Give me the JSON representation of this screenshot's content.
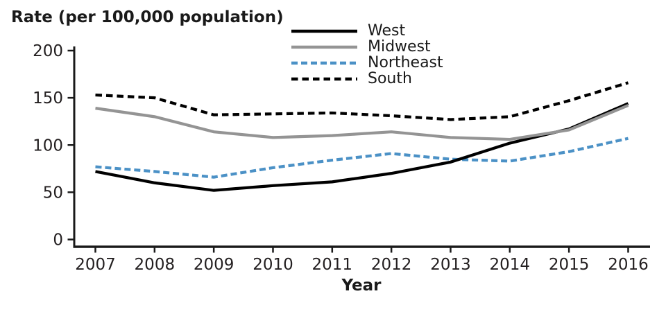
{
  "figure": {
    "background_color": "#ffffff",
    "axis_color": "#1a1a1a",
    "tick_label_color": "#231f20"
  },
  "chart_data": {
    "type": "line",
    "title": "",
    "y_axis_title": "Rate (per 100,000 population)",
    "x_axis_title": "Year",
    "x": [
      2007,
      2008,
      2009,
      2010,
      2011,
      2012,
      2013,
      2014,
      2015,
      2016
    ],
    "ylim": [
      0,
      200
    ],
    "yticks": [
      0,
      50,
      100,
      150,
      200
    ],
    "grid": false,
    "legend_position": "top-center-inside",
    "series": [
      {
        "name": "West",
        "color": "#000000",
        "line_style": "solid",
        "values": [
          72,
          60,
          52,
          57,
          61,
          70,
          82,
          102,
          117,
          144
        ]
      },
      {
        "name": "Midwest",
        "color": "#949494",
        "line_style": "solid",
        "values": [
          139,
          130,
          114,
          108,
          110,
          114,
          108,
          106,
          116,
          142
        ]
      },
      {
        "name": "Northeast",
        "color": "#4b91c6",
        "line_style": "dashed",
        "values": [
          77,
          72,
          66,
          76,
          84,
          91,
          85,
          83,
          93,
          107
        ]
      },
      {
        "name": "South",
        "color": "#000000",
        "line_style": "dashed",
        "values": [
          153,
          150,
          132,
          133,
          134,
          131,
          127,
          130,
          147,
          166
        ]
      }
    ]
  }
}
